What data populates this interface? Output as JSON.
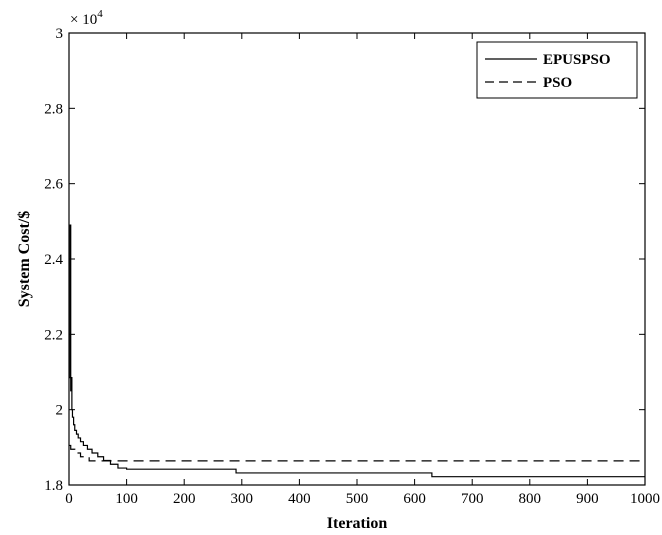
{
  "chart_data": {
    "type": "line",
    "xlabel": "Iteration",
    "ylabel": "System Cost/$",
    "y_multiplier": "× 10",
    "y_exponent": "4",
    "xlim": [
      0,
      1000
    ],
    "ylim": [
      1.8,
      3.0
    ],
    "xticks": [
      "0",
      "100",
      "200",
      "300",
      "400",
      "500",
      "600",
      "700",
      "800",
      "900",
      "1000"
    ],
    "yticks": [
      "1.8",
      "2",
      "2.2",
      "2.4",
      "2.6",
      "2.8",
      "3"
    ],
    "grid": false,
    "legend_position": "top-right",
    "series": [
      {
        "name": "EPUSPSO",
        "style": "solid",
        "color": "#000000",
        "x": [
          0,
          2,
          2,
          3,
          3,
          4,
          4,
          5,
          5,
          6,
          6,
          8,
          8,
          10,
          10,
          13,
          13,
          16,
          16,
          20,
          20,
          25,
          25,
          32,
          32,
          40,
          40,
          50,
          50,
          60,
          60,
          72,
          72,
          85,
          85,
          100,
          100,
          290,
          290,
          630,
          630,
          1000
        ],
        "y": [
          2.085,
          2.085,
          2.49,
          2.49,
          2.05,
          2.05,
          2.085,
          2.085,
          2.0,
          2.0,
          1.98,
          1.98,
          1.96,
          1.96,
          1.945,
          1.945,
          1.935,
          1.935,
          1.925,
          1.925,
          1.915,
          1.915,
          1.905,
          1.905,
          1.895,
          1.895,
          1.885,
          1.885,
          1.875,
          1.875,
          1.865,
          1.865,
          1.855,
          1.855,
          1.845,
          1.845,
          1.842,
          1.842,
          1.832,
          1.832,
          1.822,
          1.822
        ]
      },
      {
        "name": "PSO",
        "style": "dashed",
        "color": "#000000",
        "x": [
          0,
          3,
          3,
          10,
          10,
          20,
          20,
          35,
          35,
          1000
        ],
        "y": [
          1.905,
          1.905,
          1.895,
          1.895,
          1.885,
          1.885,
          1.875,
          1.875,
          1.864,
          1.864
        ]
      }
    ]
  }
}
